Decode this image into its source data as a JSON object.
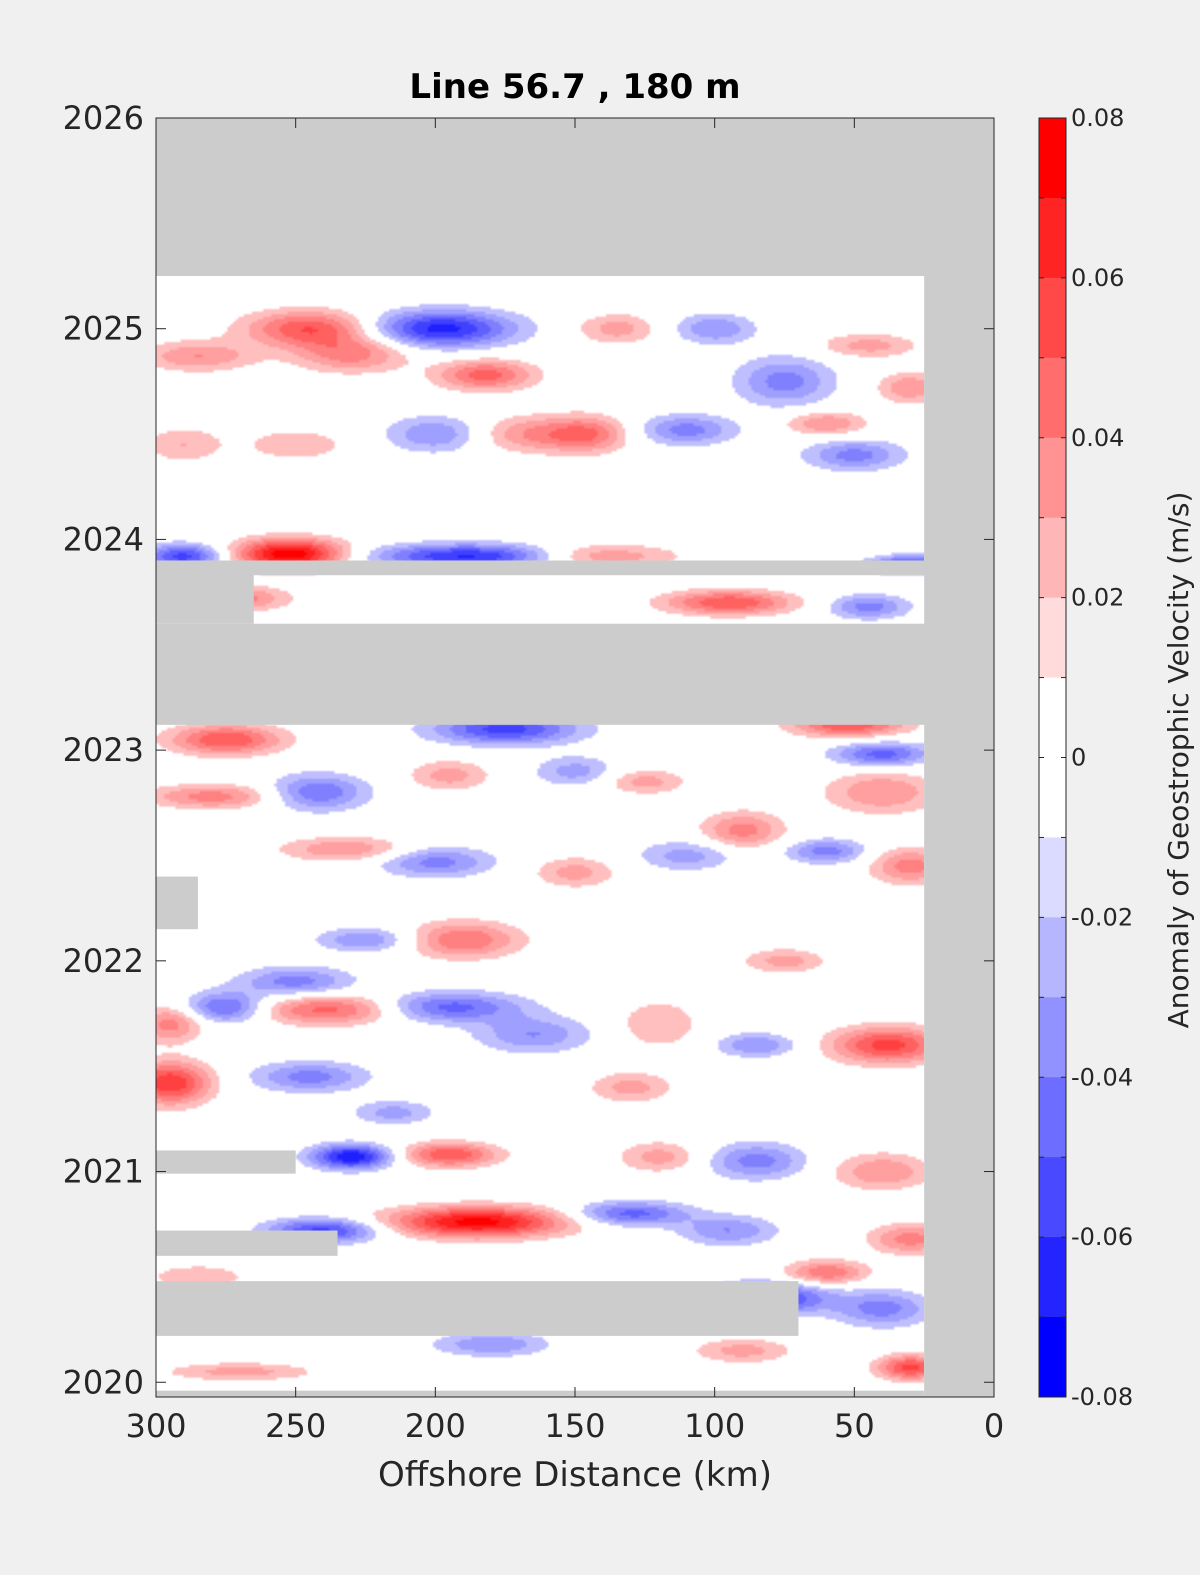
{
  "chart_data": {
    "type": "heatmap",
    "title": "Line 56.7 , 180 m",
    "xlabel": "Offshore Distance (km)",
    "ylabel": "",
    "xlim": [
      300,
      0
    ],
    "ylim": [
      2019.93,
      2026
    ],
    "x_ticks": [
      "300",
      "250",
      "200",
      "150",
      "100",
      "50",
      "0"
    ],
    "x_tick_values": [
      300,
      250,
      200,
      150,
      100,
      50,
      0
    ],
    "y_ticks": [
      "2020",
      "2021",
      "2022",
      "2023",
      "2024",
      "2025",
      "2026"
    ],
    "y_tick_values": [
      2020,
      2021,
      2022,
      2023,
      2024,
      2025,
      2026
    ],
    "colorbar": {
      "label": "Anomaly of Geostrophic Velocity (m/s)",
      "range": [
        -0.08,
        0.08
      ],
      "step": 0.01,
      "tick_labels": [
        "0.08",
        "0.06",
        "0.04",
        "0.02",
        "0",
        "-0.02",
        "-0.04",
        "-0.06",
        "-0.08"
      ],
      "tick_values": [
        0.08,
        0.06,
        0.04,
        0.02,
        0,
        -0.02,
        -0.04,
        -0.06,
        -0.08
      ]
    },
    "colors": {
      "positive": "#ff0000",
      "negative": "#0000ff",
      "zero": "#ffffff",
      "nodata": "#cccccc"
    },
    "data_extent": {
      "x_min": 25,
      "x_max": 300,
      "t_min": 2019.95,
      "t_max": 2025.25
    },
    "nodata_regions": [
      {
        "x0": 0,
        "x1": 300,
        "t0": 2025.25,
        "t1": 2026
      },
      {
        "x0": 0,
        "x1": 25,
        "t0": 2019.93,
        "t1": 2026
      },
      {
        "x0": 0,
        "x1": 300,
        "t0": 2023.12,
        "t1": 2023.6
      },
      {
        "x0": 0,
        "x1": 300,
        "t0": 2023.83,
        "t1": 2023.9
      },
      {
        "x0": 265,
        "x1": 300,
        "t0": 2023.6,
        "t1": 2023.85
      },
      {
        "x0": 285,
        "x1": 300,
        "t0": 2022.15,
        "t1": 2022.4
      },
      {
        "x0": 250,
        "x1": 300,
        "t0": 2020.99,
        "t1": 2021.1
      },
      {
        "x0": 235,
        "x1": 300,
        "t0": 2020.6,
        "t1": 2020.72
      },
      {
        "x0": 70,
        "x1": 300,
        "t0": 2020.22,
        "t1": 2020.48
      },
      {
        "x0": 25,
        "x1": 300,
        "t0": 2019.93,
        "t1": 2019.96
      }
    ],
    "features": [
      {
        "x": 252,
        "t": 2023.93,
        "v": 0.08,
        "sx": 14,
        "st": 0.05
      },
      {
        "x": 198,
        "t": 2025.0,
        "v": -0.065,
        "sx": 18,
        "st": 0.06
      },
      {
        "x": 245,
        "t": 2025.0,
        "v": 0.05,
        "sx": 16,
        "st": 0.06
      },
      {
        "x": 230,
        "t": 2024.88,
        "v": 0.035,
        "sx": 14,
        "st": 0.06
      },
      {
        "x": 285,
        "t": 2024.87,
        "v": 0.03,
        "sx": 14,
        "st": 0.05
      },
      {
        "x": 182,
        "t": 2024.78,
        "v": 0.045,
        "sx": 12,
        "st": 0.05
      },
      {
        "x": 135,
        "t": 2025.0,
        "v": 0.025,
        "sx": 10,
        "st": 0.05
      },
      {
        "x": 100,
        "t": 2025.0,
        "v": -0.03,
        "sx": 10,
        "st": 0.05
      },
      {
        "x": 75,
        "t": 2024.75,
        "v": -0.035,
        "sx": 12,
        "st": 0.08
      },
      {
        "x": 45,
        "t": 2024.92,
        "v": 0.025,
        "sx": 12,
        "st": 0.04
      },
      {
        "x": 30,
        "t": 2024.72,
        "v": 0.03,
        "sx": 8,
        "st": 0.05
      },
      {
        "x": 200,
        "t": 2024.5,
        "v": -0.03,
        "sx": 12,
        "st": 0.06
      },
      {
        "x": 250,
        "t": 2024.45,
        "v": 0.02,
        "sx": 12,
        "st": 0.05
      },
      {
        "x": 165,
        "t": 2024.5,
        "v": 0.03,
        "sx": 14,
        "st": 0.06
      },
      {
        "x": 145,
        "t": 2024.5,
        "v": 0.035,
        "sx": 10,
        "st": 0.06
      },
      {
        "x": 110,
        "t": 2024.52,
        "v": -0.035,
        "sx": 12,
        "st": 0.05
      },
      {
        "x": 60,
        "t": 2024.55,
        "v": 0.03,
        "sx": 10,
        "st": 0.04
      },
      {
        "x": 50,
        "t": 2024.4,
        "v": -0.035,
        "sx": 12,
        "st": 0.05
      },
      {
        "x": 290,
        "t": 2024.45,
        "v": 0.02,
        "sx": 10,
        "st": 0.06
      },
      {
        "x": 290,
        "t": 2023.92,
        "v": -0.055,
        "sx": 10,
        "st": 0.04
      },
      {
        "x": 185,
        "t": 2023.92,
        "v": -0.065,
        "sx": 26,
        "st": 0.04
      },
      {
        "x": 145,
        "t": 2023.92,
        "v": 0.04,
        "sx": 20,
        "st": 0.04
      },
      {
        "x": 30,
        "t": 2023.88,
        "v": -0.055,
        "sx": 10,
        "st": 0.03
      },
      {
        "x": 95,
        "t": 2023.7,
        "v": 0.05,
        "sx": 16,
        "st": 0.04
      },
      {
        "x": 270,
        "t": 2023.72,
        "v": 0.035,
        "sx": 12,
        "st": 0.04
      },
      {
        "x": 45,
        "t": 2023.68,
        "v": -0.035,
        "sx": 10,
        "st": 0.04
      },
      {
        "x": 275,
        "t": 2023.05,
        "v": 0.05,
        "sx": 14,
        "st": 0.05
      },
      {
        "x": 175,
        "t": 2023.1,
        "v": -0.055,
        "sx": 18,
        "st": 0.05
      },
      {
        "x": 52,
        "t": 2023.12,
        "v": 0.05,
        "sx": 14,
        "st": 0.04
      },
      {
        "x": 40,
        "t": 2022.98,
        "v": -0.045,
        "sx": 12,
        "st": 0.04
      },
      {
        "x": 280,
        "t": 2022.78,
        "v": 0.035,
        "sx": 16,
        "st": 0.04
      },
      {
        "x": 242,
        "t": 2022.8,
        "v": -0.04,
        "sx": 12,
        "st": 0.06
      },
      {
        "x": 195,
        "t": 2022.88,
        "v": 0.025,
        "sx": 10,
        "st": 0.05
      },
      {
        "x": 150,
        "t": 2022.9,
        "v": -0.025,
        "sx": 10,
        "st": 0.05
      },
      {
        "x": 125,
        "t": 2022.85,
        "v": 0.025,
        "sx": 10,
        "st": 0.04
      },
      {
        "x": 90,
        "t": 2022.62,
        "v": 0.035,
        "sx": 10,
        "st": 0.06
      },
      {
        "x": 40,
        "t": 2022.8,
        "v": 0.03,
        "sx": 14,
        "st": 0.07
      },
      {
        "x": 200,
        "t": 2022.47,
        "v": -0.035,
        "sx": 14,
        "st": 0.05
      },
      {
        "x": 232,
        "t": 2022.53,
        "v": 0.03,
        "sx": 16,
        "st": 0.04
      },
      {
        "x": 150,
        "t": 2022.42,
        "v": 0.025,
        "sx": 10,
        "st": 0.05
      },
      {
        "x": 110,
        "t": 2022.5,
        "v": -0.025,
        "sx": 12,
        "st": 0.05
      },
      {
        "x": 60,
        "t": 2022.52,
        "v": -0.035,
        "sx": 10,
        "st": 0.04
      },
      {
        "x": 30,
        "t": 2022.45,
        "v": 0.035,
        "sx": 10,
        "st": 0.06
      },
      {
        "x": 190,
        "t": 2022.1,
        "v": 0.04,
        "sx": 14,
        "st": 0.06
      },
      {
        "x": 225,
        "t": 2022.1,
        "v": -0.03,
        "sx": 12,
        "st": 0.04
      },
      {
        "x": 75,
        "t": 2022.0,
        "v": 0.025,
        "sx": 10,
        "st": 0.04
      },
      {
        "x": 250,
        "t": 2021.9,
        "v": -0.035,
        "sx": 14,
        "st": 0.05
      },
      {
        "x": 275,
        "t": 2021.78,
        "v": -0.045,
        "sx": 10,
        "st": 0.05
      },
      {
        "x": 238,
        "t": 2021.77,
        "v": 0.045,
        "sx": 18,
        "st": 0.05
      },
      {
        "x": 195,
        "t": 2021.78,
        "v": -0.045,
        "sx": 18,
        "st": 0.05
      },
      {
        "x": 165,
        "t": 2021.65,
        "v": -0.03,
        "sx": 14,
        "st": 0.06
      },
      {
        "x": 295,
        "t": 2021.7,
        "v": 0.035,
        "sx": 8,
        "st": 0.06
      },
      {
        "x": 38,
        "t": 2021.6,
        "v": 0.055,
        "sx": 14,
        "st": 0.06
      },
      {
        "x": 120,
        "t": 2021.7,
        "v": 0.02,
        "sx": 10,
        "st": 0.08
      },
      {
        "x": 85,
        "t": 2021.6,
        "v": -0.03,
        "sx": 10,
        "st": 0.04
      },
      {
        "x": 295,
        "t": 2021.42,
        "v": 0.06,
        "sx": 10,
        "st": 0.07
      },
      {
        "x": 245,
        "t": 2021.45,
        "v": -0.035,
        "sx": 14,
        "st": 0.05
      },
      {
        "x": 130,
        "t": 2021.4,
        "v": 0.025,
        "sx": 10,
        "st": 0.05
      },
      {
        "x": 215,
        "t": 2021.28,
        "v": -0.025,
        "sx": 10,
        "st": 0.04
      },
      {
        "x": 230,
        "t": 2021.07,
        "v": -0.07,
        "sx": 10,
        "st": 0.04
      },
      {
        "x": 195,
        "t": 2021.08,
        "v": 0.05,
        "sx": 12,
        "st": 0.04
      },
      {
        "x": 120,
        "t": 2021.07,
        "v": 0.025,
        "sx": 10,
        "st": 0.05
      },
      {
        "x": 85,
        "t": 2021.05,
        "v": -0.035,
        "sx": 12,
        "st": 0.06
      },
      {
        "x": 40,
        "t": 2021.0,
        "v": 0.03,
        "sx": 12,
        "st": 0.06
      },
      {
        "x": 185,
        "t": 2020.76,
        "v": 0.075,
        "sx": 22,
        "st": 0.05
      },
      {
        "x": 240,
        "t": 2020.72,
        "v": -0.055,
        "sx": 14,
        "st": 0.04
      },
      {
        "x": 130,
        "t": 2020.8,
        "v": -0.045,
        "sx": 14,
        "st": 0.04
      },
      {
        "x": 95,
        "t": 2020.72,
        "v": -0.03,
        "sx": 12,
        "st": 0.05
      },
      {
        "x": 30,
        "t": 2020.68,
        "v": 0.035,
        "sx": 10,
        "st": 0.05
      },
      {
        "x": 60,
        "t": 2020.52,
        "v": 0.04,
        "sx": 10,
        "st": 0.04
      },
      {
        "x": 80,
        "t": 2020.4,
        "v": -0.06,
        "sx": 14,
        "st": 0.05
      },
      {
        "x": 40,
        "t": 2020.35,
        "v": -0.035,
        "sx": 12,
        "st": 0.06
      },
      {
        "x": 180,
        "t": 2020.18,
        "v": -0.03,
        "sx": 14,
        "st": 0.04
      },
      {
        "x": 90,
        "t": 2020.15,
        "v": 0.025,
        "sx": 12,
        "st": 0.04
      },
      {
        "x": 270,
        "t": 2020.05,
        "v": 0.025,
        "sx": 18,
        "st": 0.03
      },
      {
        "x": 30,
        "t": 2020.07,
        "v": 0.055,
        "sx": 8,
        "st": 0.04
      },
      {
        "x": 285,
        "t": 2020.5,
        "v": 0.02,
        "sx": 12,
        "st": 0.04
      }
    ]
  }
}
